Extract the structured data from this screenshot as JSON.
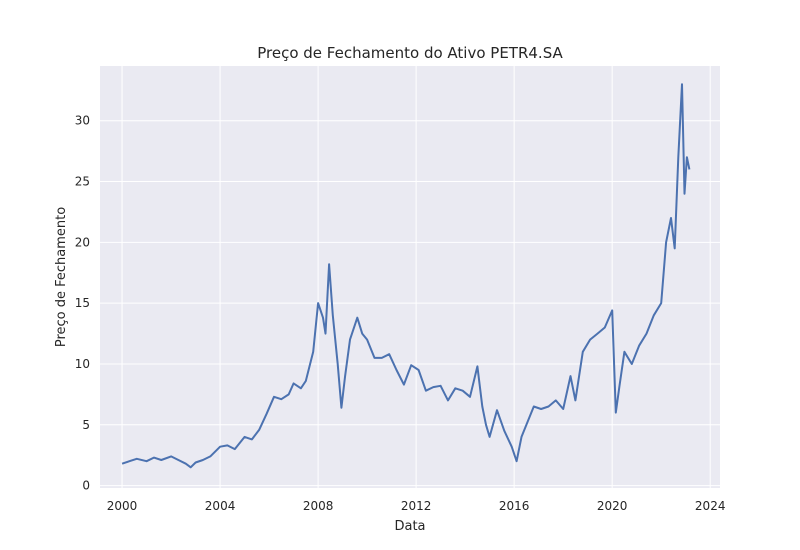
{
  "chart_data": {
    "type": "line",
    "title": "Preço de Fechamento do Ativo PETR4.SA",
    "xlabel": "Data",
    "ylabel": "Preço de Fechamento",
    "x_ticks": [
      "2000",
      "2004",
      "2008",
      "2012",
      "2016",
      "2020",
      "2024"
    ],
    "y_ticks": [
      "0",
      "5",
      "10",
      "15",
      "20",
      "25",
      "30"
    ],
    "xlim": [
      1999.1,
      2024.4
    ],
    "ylim": [
      -0.2,
      34.5
    ],
    "grid": true,
    "background": "#eaeaf2",
    "line_color": "#4c72b0",
    "series": [
      {
        "x": [
          2000.0,
          2000.3,
          2000.6,
          2001.0,
          2001.3,
          2001.6,
          2002.0,
          2002.3,
          2002.6,
          2002.8,
          2003.0,
          2003.3,
          2003.6,
          2004.0,
          2004.3,
          2004.6,
          2005.0,
          2005.3,
          2005.6,
          2005.9,
          2006.2,
          2006.5,
          2006.8,
          2007.0,
          2007.3,
          2007.5,
          2007.8,
          2008.0,
          2008.2,
          2008.3,
          2008.45,
          2008.6,
          2008.8,
          2008.95,
          2009.1,
          2009.3,
          2009.6,
          2009.8,
          2010.0,
          2010.3,
          2010.6,
          2010.9,
          2011.2,
          2011.5,
          2011.8,
          2012.1,
          2012.4,
          2012.7,
          2013.0,
          2013.3,
          2013.6,
          2013.9,
          2014.2,
          2014.5,
          2014.7,
          2014.85,
          2015.0,
          2015.3,
          2015.6,
          2015.9,
          2016.1,
          2016.3,
          2016.5,
          2016.8,
          2017.1,
          2017.4,
          2017.7,
          2018.0,
          2018.3,
          2018.5,
          2018.8,
          2019.1,
          2019.4,
          2019.7,
          2020.0,
          2020.15,
          2020.3,
          2020.5,
          2020.8,
          2021.1,
          2021.4,
          2021.7,
          2022.0,
          2022.2,
          2022.4,
          2022.55,
          2022.7,
          2022.85,
          2022.95,
          2023.05,
          2023.15
        ],
        "y": [
          1.8,
          2.0,
          2.2,
          2.0,
          2.3,
          2.1,
          2.4,
          2.1,
          1.8,
          1.5,
          1.9,
          2.1,
          2.4,
          3.2,
          3.3,
          3.0,
          4.0,
          3.8,
          4.6,
          5.9,
          7.3,
          7.1,
          7.5,
          8.4,
          8.0,
          8.6,
          11.0,
          15.0,
          13.8,
          12.5,
          18.2,
          14.0,
          10.0,
          6.4,
          9.0,
          12.0,
          13.8,
          12.5,
          12.0,
          10.5,
          10.5,
          10.8,
          9.5,
          8.3,
          9.9,
          9.5,
          7.8,
          8.1,
          8.2,
          7.0,
          8.0,
          7.8,
          7.3,
          9.8,
          6.5,
          5.0,
          4.0,
          6.2,
          4.5,
          3.2,
          2.0,
          4.0,
          5.0,
          6.5,
          6.3,
          6.5,
          7.0,
          6.3,
          9.0,
          7.0,
          11.0,
          12.0,
          12.5,
          13.0,
          14.4,
          6.0,
          8.2,
          11.0,
          10.0,
          11.5,
          12.5,
          14.0,
          15.0,
          20.0,
          22.0,
          19.5,
          27.0,
          33.0,
          24.0,
          27.0,
          26.0
        ]
      }
    ]
  }
}
